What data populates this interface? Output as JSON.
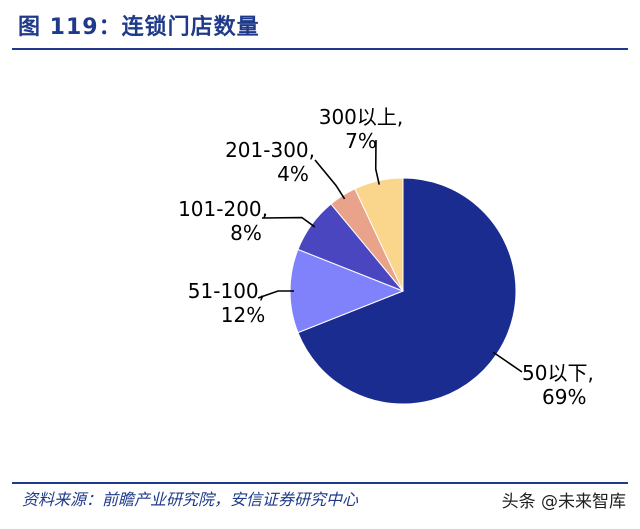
{
  "header": {
    "title": "图 119：连锁门店数量"
  },
  "footer": {
    "source": "资料来源：前瞻产业研究院，安信证券研究中心"
  },
  "watermark": {
    "text": "头条 @未来智库"
  },
  "chart_data": {
    "type": "pie",
    "title": "",
    "slices": [
      {
        "name": "50以下,",
        "value": 69,
        "pct_label": "69%",
        "color": "#1a2c8f"
      },
      {
        "name": "51-100,",
        "value": 12,
        "pct_label": "12%",
        "color": "#7f82fb"
      },
      {
        "name": "101-200,",
        "value": 8,
        "pct_label": "8%",
        "color": "#4a46c0"
      },
      {
        "name": "201-300,",
        "value": 4,
        "pct_label": "4%",
        "color": "#e9a38a"
      },
      {
        "name": "300以上,",
        "value": 7,
        "pct_label": "7%",
        "color": "#fad58c"
      }
    ]
  }
}
